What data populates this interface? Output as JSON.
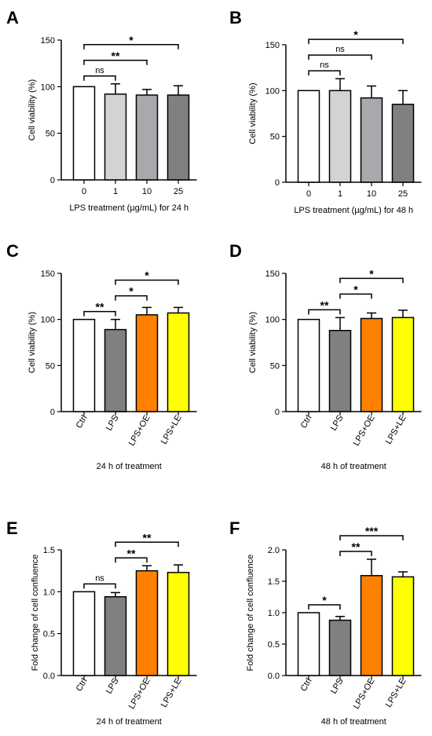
{
  "chart_data": [
    {
      "panel": "A",
      "type": "bar",
      "categories": [
        "0",
        "1",
        "10",
        "25"
      ],
      "values": [
        100,
        92,
        91,
        91
      ],
      "errors": [
        0,
        11,
        6,
        10
      ],
      "colors": [
        "#ffffff",
        "#d3d3d3",
        "#a9a9ad",
        "#808080"
      ],
      "xlabel": "LPS treatment (µg/mL) for 24 h",
      "ylabel": "Cell viability (%)",
      "ylim": [
        0,
        150
      ],
      "yticks": [
        "0",
        "50",
        "100",
        "150"
      ],
      "rotate_labels": false,
      "significance": [
        {
          "from": 0,
          "to": 1,
          "label": "ns"
        },
        {
          "from": 0,
          "to": 2,
          "label": "**"
        },
        {
          "from": 0,
          "to": 3,
          "label": "*"
        }
      ]
    },
    {
      "panel": "B",
      "type": "bar",
      "categories": [
        "0",
        "1",
        "10",
        "25"
      ],
      "values": [
        100,
        100,
        92,
        85
      ],
      "errors": [
        0,
        13,
        13,
        15
      ],
      "colors": [
        "#ffffff",
        "#d3d3d3",
        "#a9a9ad",
        "#808080"
      ],
      "xlabel": "LPS treatment (µg/mL) for 48 h",
      "ylabel": "Cell viability (%)",
      "ylim": [
        0,
        150
      ],
      "yticks": [
        "0",
        "50",
        "100",
        "150"
      ],
      "rotate_labels": false,
      "significance": [
        {
          "from": 0,
          "to": 1,
          "label": "ns"
        },
        {
          "from": 0,
          "to": 2,
          "label": "ns"
        },
        {
          "from": 0,
          "to": 3,
          "label": "*"
        }
      ]
    },
    {
      "panel": "C",
      "type": "bar",
      "categories": [
        "Ctrl",
        "LPS",
        "LPS+OE",
        "LPS+LE"
      ],
      "values": [
        100,
        89,
        105,
        107
      ],
      "errors": [
        0,
        11,
        8,
        6
      ],
      "colors": [
        "#ffffff",
        "#808080",
        "#ff8000",
        "#ffff00"
      ],
      "xlabel": "24 h of treatment",
      "ylabel": "Cell viability (%)",
      "ylim": [
        0,
        150
      ],
      "yticks": [
        "0",
        "50",
        "100",
        "150"
      ],
      "rotate_labels": true,
      "significance": [
        {
          "from": 0,
          "to": 1,
          "label": "**"
        },
        {
          "from": 1,
          "to": 2,
          "label": "*"
        },
        {
          "from": 1,
          "to": 3,
          "label": "*"
        }
      ]
    },
    {
      "panel": "D",
      "type": "bar",
      "categories": [
        "Ctrl",
        "LPS",
        "LPS+OE",
        "LPS+LE"
      ],
      "values": [
        100,
        88,
        101,
        102
      ],
      "errors": [
        0,
        14,
        6,
        8
      ],
      "colors": [
        "#ffffff",
        "#808080",
        "#ff8000",
        "#ffff00"
      ],
      "xlabel": "48 h of treatment",
      "ylabel": "Cell viability (%)",
      "ylim": [
        0,
        150
      ],
      "yticks": [
        "0",
        "50",
        "100",
        "150"
      ],
      "rotate_labels": true,
      "significance": [
        {
          "from": 0,
          "to": 1,
          "label": "**"
        },
        {
          "from": 1,
          "to": 2,
          "label": "*"
        },
        {
          "from": 1,
          "to": 3,
          "label": "*"
        }
      ]
    },
    {
      "panel": "E",
      "type": "bar",
      "categories": [
        "Ctrl",
        "LPS",
        "LPS+OE",
        "LPS+LE"
      ],
      "values": [
        1.0,
        0.94,
        1.25,
        1.23
      ],
      "errors": [
        0,
        0.05,
        0.06,
        0.09
      ],
      "colors": [
        "#ffffff",
        "#808080",
        "#ff8000",
        "#ffff00"
      ],
      "xlabel": "24 h of treatment",
      "ylabel": "Fold change of cell confluence",
      "ylim": [
        0,
        1.5
      ],
      "yticks": [
        "0.0",
        "0.5",
        "1.0",
        "1.5"
      ],
      "rotate_labels": true,
      "significance": [
        {
          "from": 0,
          "to": 1,
          "label": "ns"
        },
        {
          "from": 1,
          "to": 2,
          "label": "**"
        },
        {
          "from": 1,
          "to": 3,
          "label": "**"
        }
      ]
    },
    {
      "panel": "F",
      "type": "bar",
      "categories": [
        "Ctrl",
        "LPS",
        "LPS+OE",
        "LPS+LE"
      ],
      "values": [
        1.0,
        0.88,
        1.59,
        1.57
      ],
      "errors": [
        0,
        0.06,
        0.26,
        0.08
      ],
      "colors": [
        "#ffffff",
        "#808080",
        "#ff8000",
        "#ffff00"
      ],
      "xlabel": "48 h of treatment",
      "ylabel": "Fold change of cell confluence",
      "ylim": [
        0,
        2.0
      ],
      "yticks": [
        "0.0",
        "0.5",
        "1.0",
        "1.5",
        "2.0"
      ],
      "rotate_labels": true,
      "significance": [
        {
          "from": 0,
          "to": 1,
          "label": "*"
        },
        {
          "from": 1,
          "to": 2,
          "label": "**"
        },
        {
          "from": 1,
          "to": 3,
          "label": "***"
        }
      ]
    }
  ]
}
